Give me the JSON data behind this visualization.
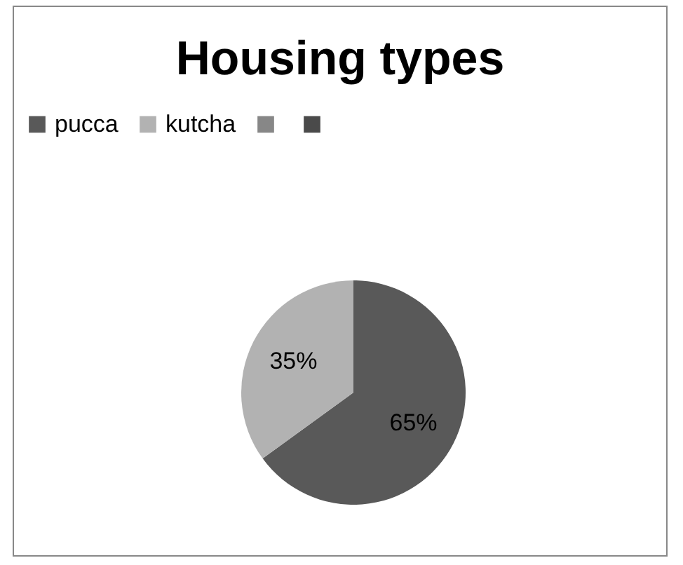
{
  "chart_data": {
    "type": "pie",
    "title": "Housing types",
    "categories": [
      "pucca",
      "kutcha",
      null,
      null
    ],
    "values": [
      65,
      35,
      0,
      0
    ],
    "colors": [
      "#595959",
      "#b2b2b2",
      "#878787",
      "#4a4a4a"
    ],
    "value_labels": [
      "65%",
      "35%",
      null,
      null
    ],
    "legend": "top"
  }
}
